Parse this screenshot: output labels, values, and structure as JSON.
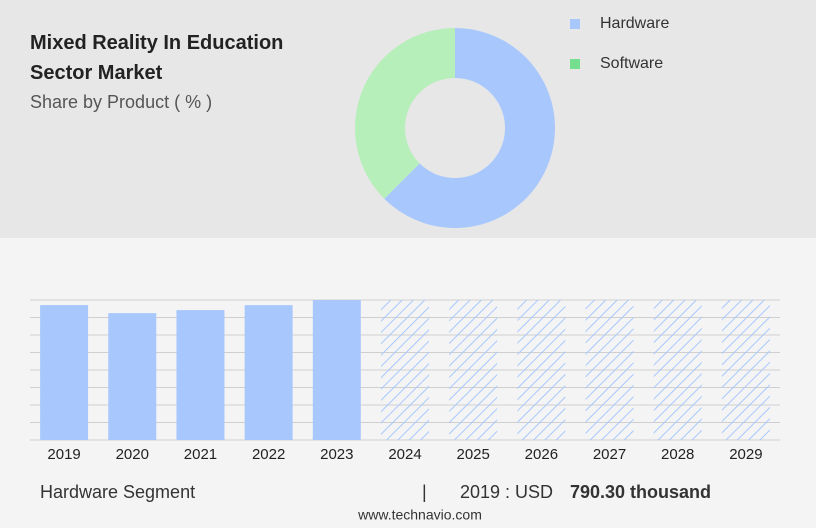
{
  "chart_data": [
    {
      "type": "donut",
      "title": "Mixed Reality In Education Sector Market",
      "subtitle": "Share by Product ( % )",
      "categories": [
        "Hardware",
        "Software"
      ],
      "values": [
        62.5,
        37.5
      ],
      "colors": [
        "#a8c8fd",
        "#b6efb9"
      ],
      "legend_colors": [
        "#a8c8fd",
        "#74df8c"
      ]
    },
    {
      "type": "bar",
      "categories": [
        "2019",
        "2020",
        "2021",
        "2022",
        "2023",
        "2024",
        "2025",
        "2026",
        "2027",
        "2028",
        "2029"
      ],
      "values": [
        790.3,
        743,
        761,
        790,
        820,
        null,
        null,
        null,
        null,
        null,
        null
      ],
      "color": "#a8c8fd",
      "ylim": [
        0,
        820
      ],
      "grid": true
    }
  ],
  "footer": {
    "segment": "Hardware Segment",
    "separator": "|",
    "year_label": "2019 : USD",
    "value_label": "790.30 thousand",
    "source": "www.technavio.com"
  }
}
